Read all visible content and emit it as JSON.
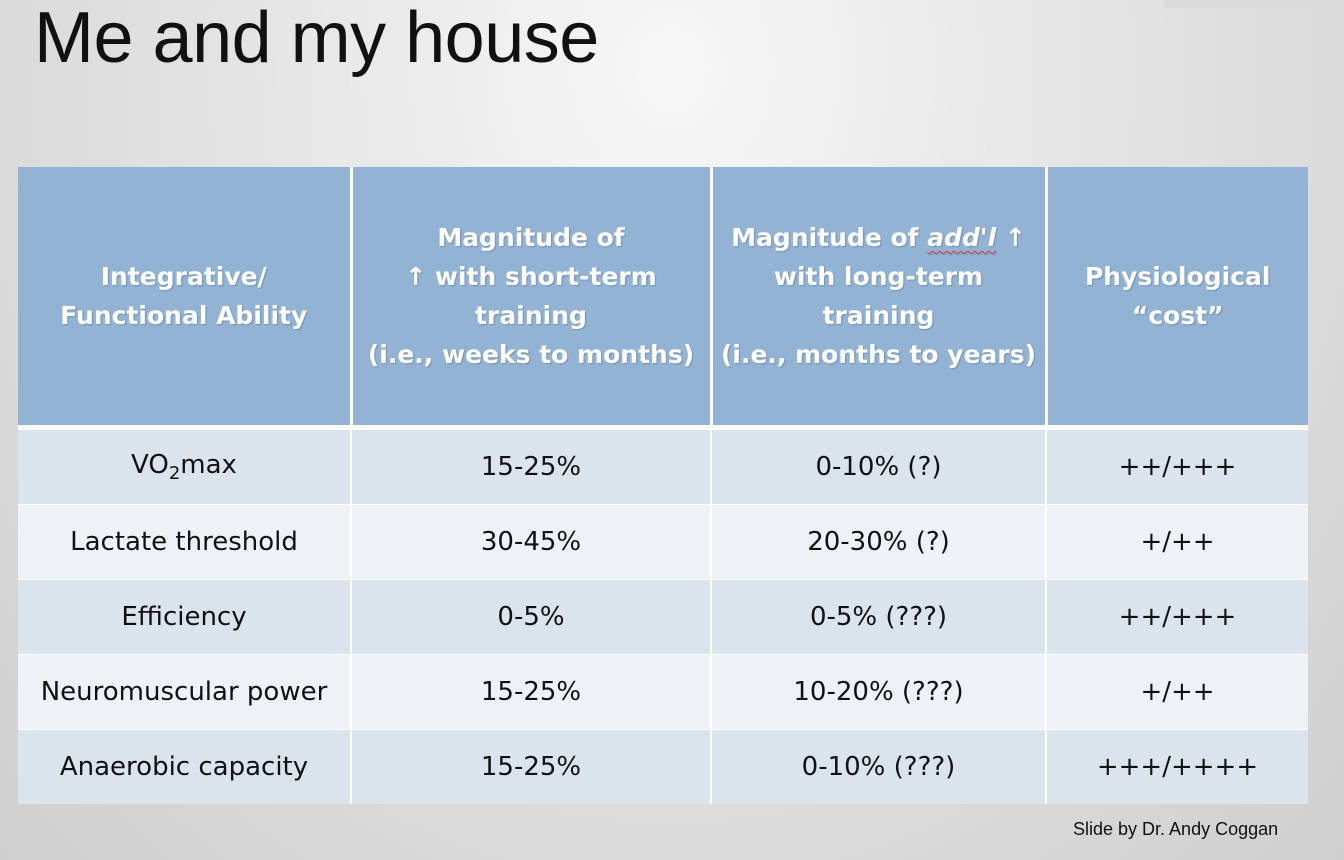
{
  "slide": {
    "title": "Me and my house",
    "credit": "Slide by Dr. Andy Coggan"
  },
  "table": {
    "header": {
      "c1": {
        "line1": "Integrative/",
        "line2": "Functional Ability"
      },
      "c2": {
        "line1": "Magnitude of",
        "line2": "↑ with short-term",
        "line3": "training",
        "line4": "(i.e., weeks to months)"
      },
      "c3": {
        "line1_pre": "Magnitude of ",
        "line1_addl": "add'l",
        "line1_post": " ↑",
        "line2": "with long-term",
        "line3": "training",
        "line4": "(i.e., months to years)"
      },
      "c4": {
        "line1": "Physiological",
        "line2": "“cost”"
      }
    },
    "rows": [
      {
        "ability_main": "VO",
        "ability_sub": "2",
        "ability_rest": "max",
        "short": "15-25%",
        "long": "0-10% (?)",
        "cost": "++/+++"
      },
      {
        "ability": "Lactate threshold",
        "short": "30-45%",
        "long": "20-30% (?)",
        "cost": "+/++"
      },
      {
        "ability": "Efficiency",
        "short": "0-5%",
        "long": "0-5% (???)",
        "cost": "++/+++"
      },
      {
        "ability": "Neuromuscular power",
        "short": "15-25%",
        "long": "10-20% (???)",
        "cost": "+/++"
      },
      {
        "ability": "Anaerobic capacity",
        "short": "15-25%",
        "long": "0-10% (???)",
        "cost": "+++/++++"
      }
    ]
  },
  "colors": {
    "header_bg": "#92b3d4",
    "row_odd": "#dbe3ed",
    "row_even": "#eef2f7"
  }
}
